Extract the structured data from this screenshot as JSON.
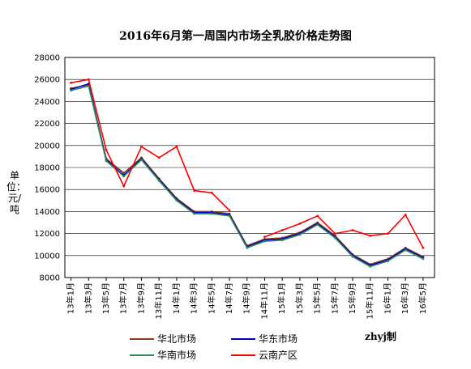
{
  "chart_data": {
    "type": "line",
    "title": "2016年6月第一周国内市场全乳胶价格走势图",
    "ylabel": "单位：元/吨",
    "ylim": [
      8000,
      28000
    ],
    "yticks": [
      "8000",
      "10000",
      "12000",
      "14000",
      "16000",
      "18000",
      "20000",
      "22000",
      "24000",
      "26000",
      "28000"
    ],
    "categories": [
      "13年1月",
      "13年3月",
      "13年5月",
      "13年7月",
      "13年9月",
      "13年11月",
      "14年1月",
      "14年3月",
      "14年5月",
      "14年7月",
      "14年9月",
      "14年11月",
      "15年1月",
      "15年3月",
      "15年5月",
      "15年7月",
      "15年9月",
      "15年11月",
      "16年1月",
      "16年3月",
      "16年5月"
    ],
    "grid": true,
    "legend_position": "bottom",
    "series": [
      {
        "name": "华北市场",
        "color": "#8B3A1A",
        "values": [
          25200,
          25500,
          18800,
          17500,
          18900,
          17000,
          15200,
          14000,
          14000,
          13800,
          10900,
          11500,
          11600,
          12100,
          13000,
          11800,
          10100,
          9200,
          9700,
          10700,
          9900
        ]
      },
      {
        "name": "华东市场",
        "color": "#0000CC",
        "values": [
          25100,
          25600,
          18700,
          17300,
          18800,
          16900,
          15100,
          13900,
          13900,
          13700,
          10800,
          11400,
          11500,
          12000,
          12900,
          11700,
          10000,
          9100,
          9600,
          10600,
          9800
        ]
      },
      {
        "name": "华南市场",
        "color": "#2E8B57",
        "values": [
          25000,
          25400,
          18600,
          17200,
          18700,
          16800,
          15000,
          13800,
          13800,
          13600,
          10700,
          11300,
          11400,
          11900,
          12800,
          11600,
          9900,
          9000,
          9500,
          10500,
          9700
        ]
      },
      {
        "name": "云南产区",
        "color": "#FF0000",
        "values": [
          25700,
          26000,
          19600,
          16300,
          19900,
          18900,
          19900,
          15900,
          15700,
          14100,
          null,
          11700,
          12300,
          12900,
          13600,
          12000,
          12300,
          11800,
          12000,
          13700,
          10700
        ]
      }
    ],
    "annotations": [
      "zhyj制"
    ]
  }
}
